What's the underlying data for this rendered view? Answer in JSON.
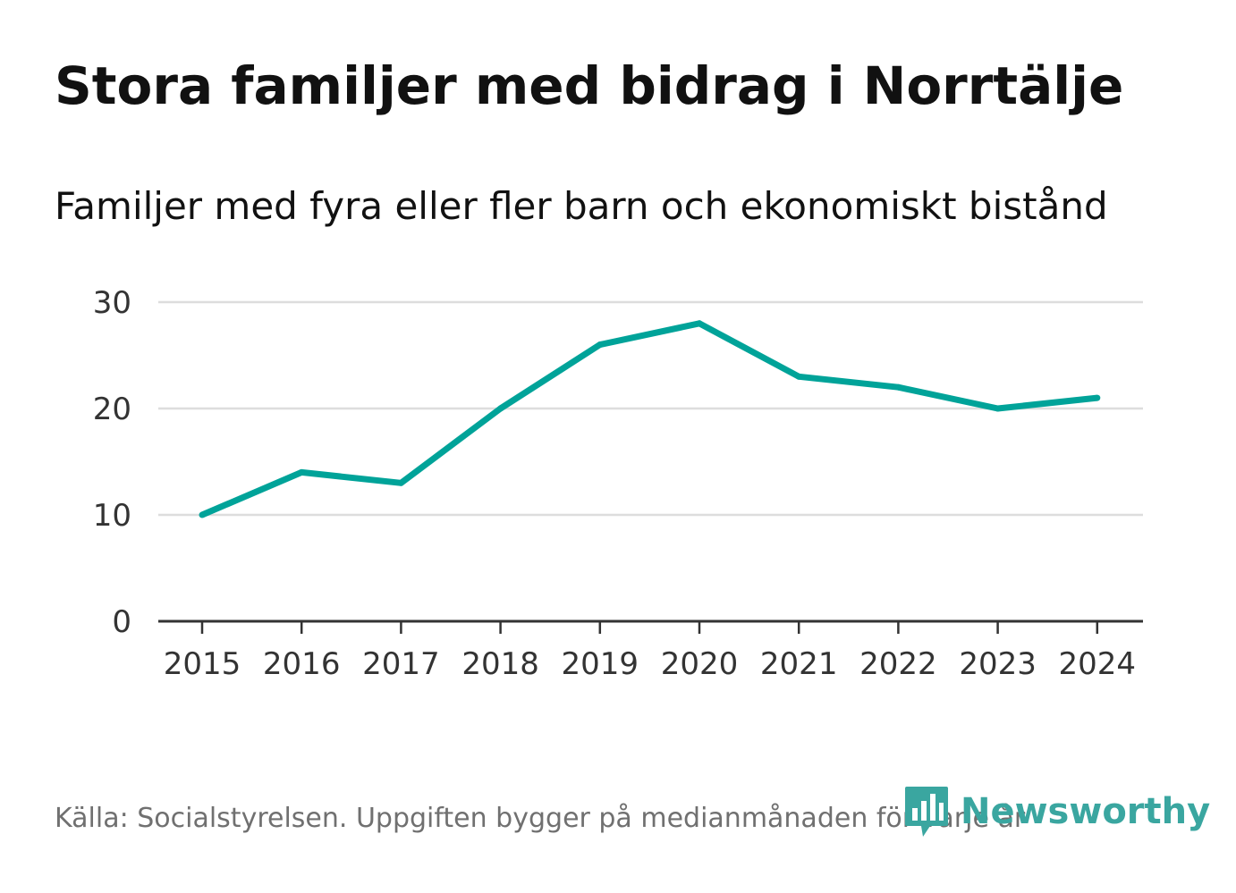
{
  "title": "Stora familjer med bidrag i Norrtälje",
  "subtitle": "Familjer med fyra eller fler barn och ekonomiskt bistånd",
  "footer": "Källa: Socialstyrelsen. Uppgiften bygger på medianmånaden för varje år",
  "logo": {
    "text": "Newsworthy",
    "icon": "bar-chart-badge-icon"
  },
  "colors": {
    "line": "#00a399",
    "logo": "#3aa6a0",
    "grid": "#dddddd",
    "axis": "#333333",
    "tick_text": "#333333"
  },
  "chart_data": {
    "type": "line",
    "title": "Stora familjer med bidrag i Norrtälje",
    "subtitle": "Familjer med fyra eller fler barn och ekonomiskt bistånd",
    "xlabel": "",
    "ylabel": "",
    "categories": [
      "2015",
      "2016",
      "2017",
      "2018",
      "2019",
      "2020",
      "2021",
      "2022",
      "2023",
      "2024"
    ],
    "series": [
      {
        "name": "Familjer med fyra eller fler barn och ekonomiskt bistånd",
        "values": [
          10,
          14,
          13,
          20,
          26,
          28,
          23,
          22,
          20,
          21
        ]
      }
    ],
    "ylim": [
      0,
      30
    ],
    "yticks": [
      "0",
      "10",
      "20",
      "30"
    ],
    "grid": true,
    "legend": "none"
  }
}
